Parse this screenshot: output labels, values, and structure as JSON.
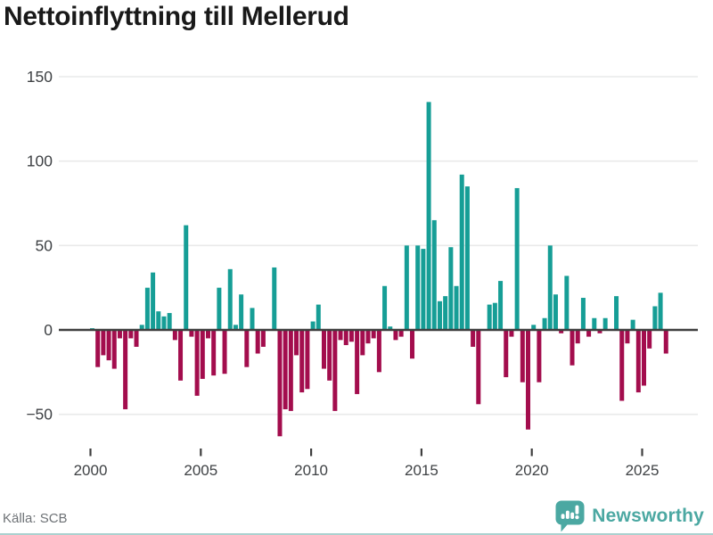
{
  "title": "Nettoinflyttning till Mellerud",
  "source": "Källa: SCB",
  "brand": {
    "name": "Newsworthy"
  },
  "colors": {
    "positive": "#169e96",
    "negative": "#a30d4d",
    "grid": "#e9eaea",
    "zero_line": "#3e3e3e",
    "axis_text": "#3f4245",
    "title_text": "#191919",
    "source_text": "#6e7276",
    "brand_teal": "#4ba8a2",
    "bottom_rule": "#abd1cf"
  },
  "chart_data": {
    "type": "bar",
    "title": "Nettoinflyttning till Mellerud",
    "xlabel": "",
    "ylabel": "",
    "frequency": "quarterly",
    "start_year": 2000,
    "start_quarter": 1,
    "values": [
      1,
      -22,
      -15,
      -18,
      -23,
      -5,
      -47,
      -5,
      -10,
      3,
      25,
      34,
      11,
      8,
      10,
      -6,
      -30,
      62,
      -4,
      -39,
      -29,
      -5,
      -27,
      25,
      -26,
      36,
      3,
      21,
      -22,
      13,
      -14,
      -10,
      0,
      37,
      -63,
      -47,
      -48,
      -15,
      -37,
      -35,
      5,
      15,
      -23,
      -30,
      -48,
      -6,
      -9,
      -7,
      -38,
      -15,
      -8,
      -5,
      -25,
      26,
      2,
      -6,
      -4,
      50,
      -17,
      50,
      48,
      135,
      65,
      17,
      20,
      49,
      26,
      92,
      85,
      -10,
      -44,
      0,
      15,
      16,
      29,
      -28,
      -4,
      84,
      -31,
      -59,
      3,
      -31,
      7,
      50,
      21,
      -2,
      32,
      -21,
      -8,
      19,
      -4,
      7,
      -2,
      7,
      0,
      20,
      -42,
      -8,
      6,
      -37,
      -33,
      -11,
      14,
      22,
      -14
    ],
    "x_ticks": [
      2000,
      2005,
      2010,
      2015,
      2020,
      2025
    ],
    "x_tick_labels": [
      "2000",
      "2005",
      "2010",
      "2015",
      "2020",
      "2025"
    ],
    "y_ticks": [
      150,
      100,
      50,
      0,
      -50
    ],
    "y_tick_labels": [
      "150",
      "100",
      "50",
      "0",
      "−50"
    ],
    "ylim": [
      -70,
      155
    ],
    "grid": true,
    "legend": "none",
    "positive_color_meaning": "net in-migration",
    "negative_color_meaning": "net out-migration"
  }
}
